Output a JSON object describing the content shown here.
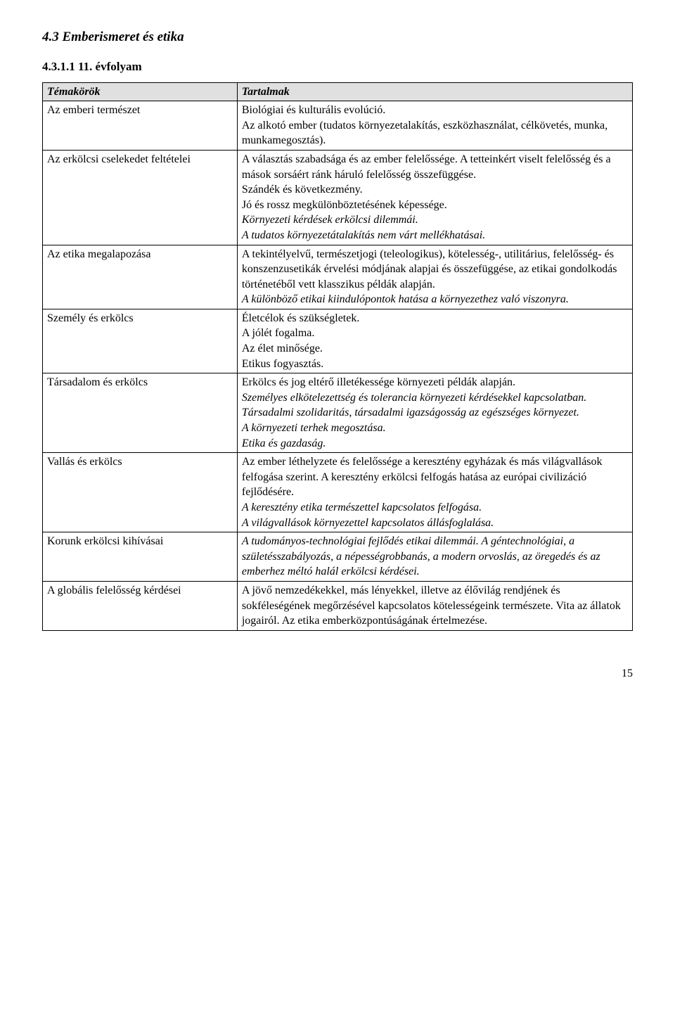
{
  "heading3": "4.3   Emberismeret és etika",
  "heading4": "4.3.1.1 11. évfolyam",
  "table": {
    "header": {
      "left": "Témakörök",
      "right": "Tartalmak"
    },
    "background_header": "#e0e0e0",
    "border_color": "#000000",
    "rows": [
      {
        "left": "Az emberi természet",
        "right_lines": [
          {
            "text": "Biológiai és kulturális evolúció.",
            "italic": false
          },
          {
            "text": "Az alkotó ember (tudatos környezetalakítás, eszközhasználat, célkövetés, munka, munkamegosztás).",
            "italic": false
          }
        ]
      },
      {
        "left": "Az erkölcsi cselekedet feltételei",
        "right_lines": [
          {
            "text": "A választás szabadsága és az ember felelőssége. A tetteinkért viselt felelősség és a mások sorsáért ránk háruló felelősség összefüggése.",
            "italic": false
          },
          {
            "text": "Szándék és következmény.",
            "italic": false
          },
          {
            "text": "Jó és rossz megkülönböztetésének képessége.",
            "italic": false
          },
          {
            "text": "Környezeti kérdések erkölcsi dilemmái.",
            "italic": true
          },
          {
            "text": "A tudatos környezetátalakítás nem várt mellékhatásai.",
            "italic": true
          }
        ]
      },
      {
        "left": "Az etika megalapozása",
        "right_lines": [
          {
            "text": "A tekintélyelvű, természetjogi (teleologikus), kötelesség-, utilitárius, felelősség- és konszenzusetikák érvelési módjának alapjai és összefüggése, az etikai gondolkodás történetéből vett klasszikus példák alapján.",
            "italic": false
          },
          {
            "text": "A különböző etikai kiindulópontok hatása a környezethez való viszonyra.",
            "italic": true
          }
        ]
      },
      {
        "left": "Személy és erkölcs",
        "right_lines": [
          {
            "text": "Életcélok és szükségletek.",
            "italic": false
          },
          {
            "text": "A jólét fogalma.",
            "italic": false
          },
          {
            "text": "Az élet minősége.",
            "italic": false
          },
          {
            "text": "Etikus fogyasztás.",
            "italic": false
          }
        ]
      },
      {
        "left": "Társadalom és erkölcs",
        "right_lines": [
          {
            "text": "Erkölcs és jog eltérő illetékessége környezeti példák alapján.",
            "italic": false
          },
          {
            "text": "Személyes elkötelezettség és tolerancia környezeti kérdésekkel kapcsolatban.",
            "italic": true
          },
          {
            "text": "Társadalmi szolidaritás, társadalmi igazságosság az egészséges környezet.",
            "italic": true
          },
          {
            "text": "A környezeti terhek megosztása.",
            "italic": true
          },
          {
            "text": "Etika és gazdaság.",
            "italic": true
          }
        ]
      },
      {
        "left": "Vallás és erkölcs",
        "right_lines": [
          {
            "text": "Az ember léthelyzete és felelőssége a keresztény egyházak és más világvallások felfogása szerint. A keresztény erkölcsi felfogás hatása az európai civilizáció fejlődésére.",
            "italic": false
          },
          {
            "text": "A keresztény etika természettel kapcsolatos felfogása.",
            "italic": true
          },
          {
            "text": "A világvallások környezettel kapcsolatos állásfoglalása.",
            "italic": true
          }
        ]
      },
      {
        "left": "Korunk erkölcsi kihívásai",
        "right_lines": [
          {
            "text": "A tudományos-technológiai fejlődés etikai dilemmái. A géntechnológiai, a születésszabályozás, a népességrobbanás, a modern orvoslás, az öregedés és az emberhez méltó halál erkölcsi kérdései.",
            "italic": true
          }
        ]
      },
      {
        "left": "A globális felelősség kérdései",
        "right_lines": [
          {
            "text": "A jövő nemzedékekkel, más lényekkel, illetve az élővilág rendjének és sokféleségének megőrzésével kapcsolatos kötelességeink természete. Vita az állatok jogairól. Az etika emberközpontúságának értelmezése.",
            "italic": false
          }
        ]
      }
    ]
  },
  "page_number": "15"
}
